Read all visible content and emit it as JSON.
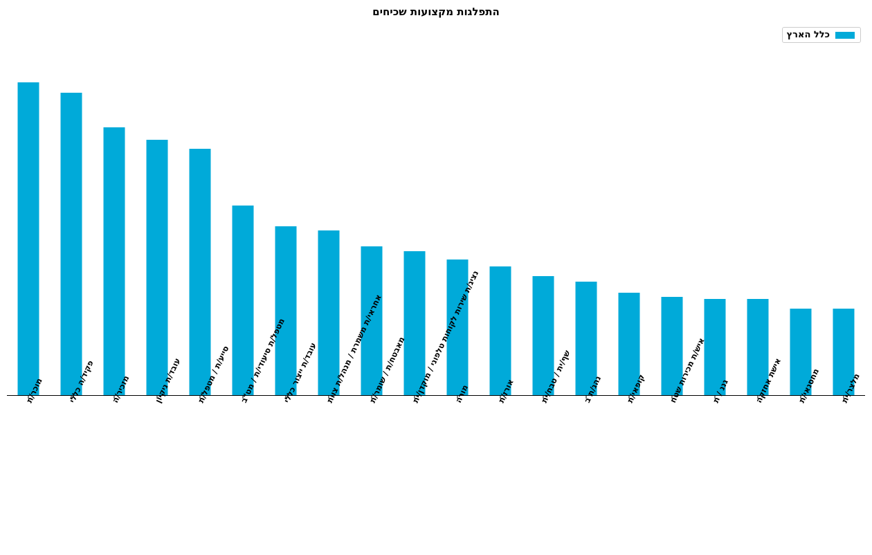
{
  "chart_data": {
    "type": "bar",
    "title": "התפלגות מקצועות שכיחים",
    "xlabel": "",
    "ylabel": "",
    "legend_position": "top-right",
    "grid": false,
    "y_axis_visible": false,
    "bar_color": "#00aad9",
    "ylim": [
      0,
      480
    ],
    "categories": [
      "מוכר/ת",
      "פקיד/ה כללי",
      "מזכיר/ה",
      "עובד/ת ניקיון",
      "סייע/ת / מטפל/ת",
      "מטפל/ת סיעודי/ת / מט\"ב",
      "עובד/ת ייצור כללי",
      "אחראי/ת משמרת / מנהל/ת צוות",
      "מאבטח/ת / שומר/ת",
      "נציג/ת שירות לקוחות טלפוני / מוקדן/ית",
      "מורה",
      "אורז/ת",
      "שף/ית / טבח/ית",
      "נהג/ת ב",
      "קופאי/ת",
      "איש/ת מכירות שטח",
      "גננ / ת",
      "אישת אחזקה",
      "מחסנאי/ת",
      "מלצר/ית"
    ],
    "series": [
      {
        "name": "כלל הארץ",
        "values": [
          452,
          437,
          387,
          369,
          356,
          274,
          244,
          238,
          215,
          208,
          196,
          186,
          172,
          164,
          148,
          142,
          139,
          139,
          125,
          125
        ]
      }
    ]
  }
}
